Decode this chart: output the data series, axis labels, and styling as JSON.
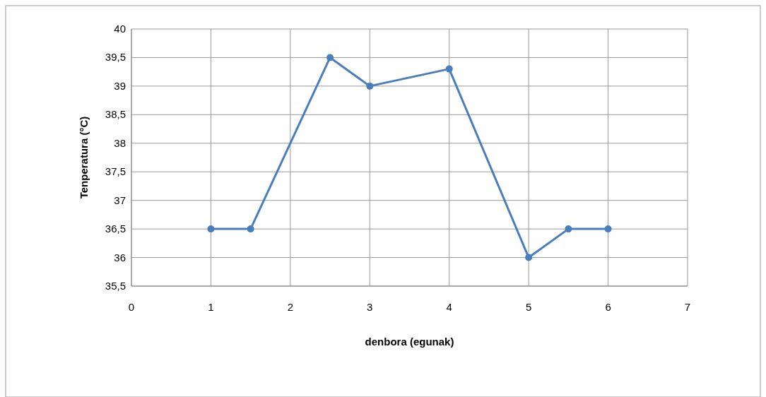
{
  "chart_data": {
    "type": "line",
    "xlabel": "denbora (egunak)",
    "ylabel": "Tenperatura (°C)",
    "x": [
      1,
      1.5,
      2.5,
      3,
      4,
      5,
      5.5,
      6
    ],
    "series": [
      {
        "color": "#4a7ebb",
        "values": [
          36.5,
          36.5,
          39.5,
          39,
          39.3,
          36,
          36.5,
          36.5
        ]
      }
    ],
    "xlim": [
      0,
      7
    ],
    "xticks": [
      0,
      1,
      2,
      3,
      4,
      5,
      6,
      7
    ],
    "ylim": [
      35.5,
      40
    ],
    "yticks": [
      {
        "value": 35.5,
        "label": "35,5"
      },
      36,
      {
        "value": 36.5,
        "label": "36,5"
      },
      37,
      {
        "value": 37.5,
        "label": "37,5"
      },
      38,
      {
        "value": 38.5,
        "label": "38,5"
      },
      39,
      {
        "value": 39.5,
        "label": "39,5"
      },
      40
    ],
    "grid": true,
    "marker": "circle",
    "line_style": "solid"
  }
}
